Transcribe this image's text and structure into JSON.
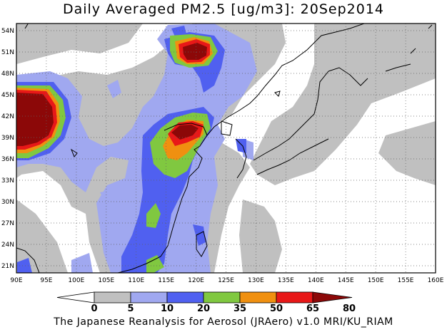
{
  "title": "Daily Averaged PM2.5 [ug/m3]: 20Sep2014",
  "footer": "The Japanese Reanalysis for Aerosol (JRAero) v1.0 MRI/KU_RIAM",
  "map": {
    "lon_range": [
      90,
      160
    ],
    "lat_range": [
      20,
      55
    ],
    "lon_ticks": [
      "90E",
      "95E",
      "100E",
      "105E",
      "110E",
      "115E",
      "120E",
      "125E",
      "130E",
      "135E",
      "140E",
      "145E",
      "150E",
      "155E",
      "160E"
    ],
    "lat_ticks": [
      "21N",
      "24N",
      "27N",
      "30N",
      "33N",
      "36N",
      "39N",
      "42N",
      "45N",
      "48N",
      "51N",
      "54N"
    ],
    "grid": "dotted"
  },
  "colorbar": {
    "levels": [
      "0",
      "5",
      "10",
      "20",
      "35",
      "50",
      "65",
      "80"
    ],
    "colors": [
      "#ffffff",
      "#c0c0c0",
      "#a0a8f0",
      "#5060f0",
      "#80c840",
      "#f09010",
      "#e81818",
      "#8c0808"
    ]
  },
  "colors": {
    "bin_5_10": "#c0c0c0",
    "bin_10_20": "#a0a8f0",
    "bin_20_35": "#5060f0",
    "bin_35_50": "#80c840",
    "bin_50_65": "#f09010",
    "bin_65_80": "#e81818",
    "bin_80_plus": "#8c0808"
  }
}
